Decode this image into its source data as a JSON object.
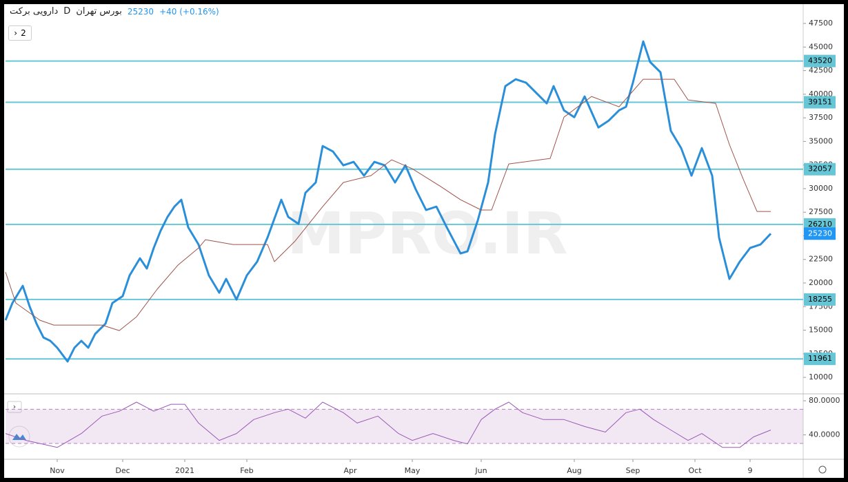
{
  "header": {
    "symbol": "دارویی برکت",
    "interval": "D",
    "exchange": "بورس تهران",
    "last": 25230,
    "change": "+40 (+0.16%)",
    "button": "2",
    "watermark": "MPRO.IR"
  },
  "chart_data": [
    {
      "type": "line",
      "pane": "price",
      "xlim": [
        0,
        232
      ],
      "ylim": [
        8400,
        49400
      ],
      "yticks": [
        10000,
        12500,
        15000,
        17500,
        20000,
        22500,
        25000,
        27500,
        30000,
        32500,
        35000,
        37500,
        40000,
        42500,
        45000,
        47500
      ],
      "xticks": [
        {
          "value": 15,
          "label": "Nov"
        },
        {
          "value": 34,
          "label": "Dec"
        },
        {
          "value": 52,
          "label": "2021"
        },
        {
          "value": 70,
          "label": "Feb"
        },
        {
          "value": 100,
          "label": "Apr"
        },
        {
          "value": 118,
          "label": "May"
        },
        {
          "value": 138,
          "label": "Jun"
        },
        {
          "value": 165,
          "label": "Aug"
        },
        {
          "value": 182,
          "label": "Sep"
        },
        {
          "value": 200,
          "label": "Oct"
        },
        {
          "value": 216,
          "label": "9"
        }
      ],
      "levels": [
        43520,
        39151,
        32057,
        26210,
        18255,
        11961
      ],
      "level_color": "#67c6d6",
      "last_value": 25230,
      "last_color": "#2196f3",
      "series": [
        {
          "name": "Price",
          "color": "#2a8fd8",
          "x": [
            0,
            2,
            5,
            7,
            9,
            11,
            13,
            15,
            18,
            20,
            22,
            24,
            26,
            29,
            31,
            34,
            36,
            39,
            41,
            43,
            45,
            47,
            49,
            51,
            53,
            56,
            59,
            62,
            64,
            67,
            70,
            73,
            76,
            80,
            82,
            85,
            87,
            90,
            92,
            95,
            98,
            101,
            104,
            107,
            110,
            113,
            116,
            119,
            122,
            125,
            128,
            132,
            134,
            137,
            140,
            142,
            145,
            148,
            151,
            154,
            157,
            159,
            162,
            165,
            168,
            172,
            175,
            178,
            180,
            182,
            185,
            187,
            190,
            193,
            196,
            199,
            202,
            205,
            207,
            210,
            213,
            216,
            219,
            222
          ],
          "values": [
            16050,
            17880,
            19700,
            17510,
            15690,
            14230,
            13870,
            13140,
            11680,
            13140,
            13870,
            13140,
            14600,
            15690,
            17880,
            18610,
            20800,
            22620,
            21530,
            23710,
            25540,
            27000,
            28090,
            28820,
            25900,
            24080,
            20800,
            18970,
            20430,
            18240,
            20800,
            22260,
            24810,
            28820,
            27000,
            26270,
            29550,
            30650,
            34510,
            33930,
            32470,
            32830,
            31370,
            32830,
            32470,
            30650,
            32470,
            29920,
            27730,
            28090,
            25900,
            23130,
            23350,
            26630,
            30650,
            35750,
            40860,
            41590,
            41220,
            40130,
            39030,
            40860,
            38300,
            37570,
            39760,
            36480,
            37210,
            38300,
            38670,
            41220,
            45600,
            43410,
            42320,
            36120,
            34290,
            31370,
            34290,
            31370,
            24810,
            20430,
            22260,
            23710,
            24080,
            25230
          ]
        },
        {
          "name": "Base line",
          "color": "#a0524a",
          "x": [
            0,
            3,
            10,
            14,
            28,
            33,
            38,
            44,
            50,
            56,
            58,
            66,
            76,
            78,
            84,
            92,
            98,
            106,
            112,
            118,
            126,
            132,
            138,
            141,
            146,
            158,
            162,
            170,
            178,
            185,
            194,
            198,
            206,
            210,
            214,
            218,
            222
          ],
          "values": [
            21160,
            17880,
            16050,
            15540,
            15540,
            14960,
            16420,
            19340,
            21890,
            23710,
            24590,
            24080,
            24080,
            22260,
            24440,
            28090,
            30650,
            31370,
            33050,
            32100,
            30280,
            28820,
            27730,
            27730,
            32610,
            33200,
            37570,
            39760,
            38670,
            41590,
            41590,
            39400,
            39030,
            34660,
            31010,
            27580,
            27580
          ]
        }
      ]
    },
    {
      "type": "line",
      "pane": "rsi",
      "xlim": [
        0,
        232
      ],
      "ylim": [
        13,
        86.5
      ],
      "yticks": [
        {
          "value": 40,
          "label": "40.0000"
        },
        {
          "value": 80,
          "label": "80.0000"
        }
      ],
      "bands": [
        70,
        30
      ],
      "band_color": "#b57fc4",
      "series": [
        {
          "name": "RSI",
          "color": "#9b59b6",
          "x": [
            0,
            6,
            15,
            22,
            28,
            33,
            38,
            43,
            48,
            52,
            56,
            62,
            67,
            72,
            78,
            82,
            87,
            92,
            98,
            102,
            108,
            114,
            118,
            124,
            130,
            134,
            138,
            142,
            146,
            150,
            156,
            162,
            168,
            174,
            180,
            184,
            188,
            193,
            198,
            202,
            208,
            213,
            217,
            222
          ],
          "values": [
            41.6,
            33.5,
            25.3,
            41.6,
            62.0,
            67.8,
            78.4,
            67.8,
            75.9,
            75.9,
            53.9,
            33.5,
            41.6,
            58.0,
            66.1,
            70.2,
            59.6,
            78.4,
            66.1,
            53.9,
            62.0,
            41.6,
            33.5,
            41.6,
            33.5,
            29.4,
            58.0,
            70.2,
            78.4,
            66.1,
            58.0,
            58.0,
            49.8,
            43.3,
            66.1,
            70.2,
            58.0,
            45.7,
            33.5,
            41.6,
            25.3,
            25.3,
            37.6,
            45.7
          ]
        }
      ]
    }
  ]
}
